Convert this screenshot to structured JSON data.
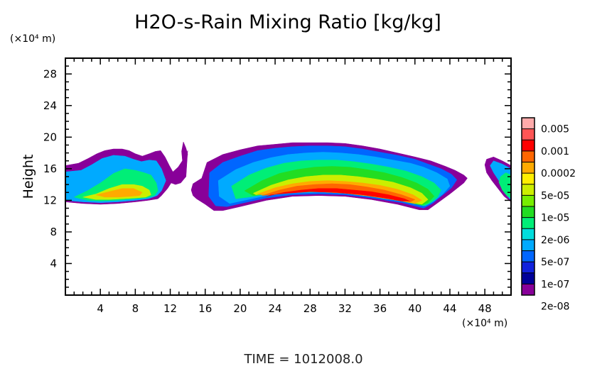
{
  "chart_data": {
    "type": "heatmap",
    "title": "H2O-s-Rain Mixing Ratio [kg/kg]",
    "xlabel": "",
    "x_unit": "(×10⁴ m)",
    "ylabel": "Height",
    "y_unit": "(×10⁴ m)",
    "xlim": [
      0,
      51
    ],
    "ylim": [
      0,
      30
    ],
    "x_ticks": [
      "4",
      "8",
      "12",
      "16",
      "20",
      "24",
      "28",
      "32",
      "36",
      "40",
      "44",
      "48"
    ],
    "y_ticks": [
      "4",
      "8",
      "12",
      "16",
      "20",
      "24",
      "28"
    ],
    "time_label": "TIME  =  1012008.0",
    "colorbar": {
      "labels": [
        "0.005",
        "0.001",
        "0.0002",
        "5e-05",
        "1e-05",
        "2e-06",
        "5e-07",
        "1e-07",
        "2e-08"
      ],
      "colors": [
        "#ffaaaa",
        "#ff5555",
        "#ff0000",
        "#ff6600",
        "#ffaa00",
        "#ffee00",
        "#ccee00",
        "#77ee00",
        "#22dd22",
        "#00ee77",
        "#00dddd",
        "#00aaff",
        "#0066ff",
        "#1122dd",
        "#000099",
        "#880099"
      ]
    },
    "layers": [
      {
        "level": "2e-08",
        "color": "#880099",
        "region": "right",
        "x": [
          44.0,
          44.0,
          44.4,
          45.0,
          45.6,
          45.0
        ],
        "y": [
          14.6,
          15.2,
          15.7,
          15.4,
          15.1,
          14.8
        ]
      },
      {
        "level": "2e-08",
        "color": "#880099",
        "region": "left",
        "x": [
          0.0,
          0.0,
          1.5,
          2.6,
          3.6,
          4.5,
          5.5,
          6.5,
          7.3,
          8.0,
          8.8,
          9.6,
          10.3,
          10.9,
          11.4,
          11.9,
          12.3,
          12.9,
          13.5,
          14.0,
          13.8,
          13.2,
          12.6,
          12.1,
          11.7,
          11.0,
          10.6,
          9.5,
          8.0,
          6.0,
          4.0,
          2.0,
          0.0
        ],
        "y": [
          11.8,
          16.4,
          16.7,
          17.3,
          17.9,
          18.3,
          18.5,
          18.5,
          18.3,
          17.9,
          17.6,
          17.9,
          18.2,
          18.3,
          17.5,
          16.4,
          15.6,
          16.2,
          17.2,
          18.3,
          15.0,
          14.2,
          14.0,
          14.2,
          13.5,
          12.6,
          12.2,
          12.0,
          11.8,
          11.6,
          11.5,
          11.6,
          11.8
        ]
      },
      {
        "level": "5e-07",
        "color": "#00aaff",
        "region": "left",
        "x": [
          0.0,
          0.0,
          1.8,
          3.0,
          4.2,
          5.5,
          6.8,
          7.8,
          8.7,
          9.6,
          10.4,
          11.0,
          11.5,
          11.0,
          10.5,
          9.5,
          8.0,
          6.0,
          4.0,
          2.0,
          0.0
        ],
        "y": [
          12.0,
          15.6,
          15.8,
          16.5,
          17.3,
          17.7,
          17.6,
          17.2,
          16.9,
          17.1,
          17.0,
          16.0,
          14.5,
          13.2,
          12.6,
          12.2,
          12.0,
          11.8,
          11.7,
          11.8,
          12.0
        ]
      },
      {
        "level": "2e-06",
        "color": "#00ee77",
        "region": "left",
        "x": [
          1.0,
          2.5,
          4.0,
          5.5,
          6.8,
          8.0,
          9.0,
          9.8,
          10.4,
          10.6,
          10.2,
          9.2,
          8.0,
          6.0,
          4.0,
          2.5,
          1.0
        ],
        "y": [
          12.4,
          13.2,
          14.2,
          15.4,
          16.0,
          15.8,
          15.5,
          15.2,
          14.2,
          13.2,
          12.6,
          12.3,
          12.2,
          12.0,
          11.9,
          12.0,
          12.4
        ]
      },
      {
        "level": "5e-05",
        "color": "#ccee00",
        "region": "left",
        "x": [
          2.0,
          3.5,
          5.0,
          6.5,
          7.8,
          8.8,
          9.6,
          9.8,
          9.2,
          8.0,
          6.5,
          5.0,
          3.5,
          2.0
        ],
        "y": [
          12.4,
          12.8,
          13.5,
          14.0,
          14.0,
          13.8,
          13.3,
          12.7,
          12.4,
          12.3,
          12.2,
          12.1,
          12.1,
          12.4
        ]
      },
      {
        "level": "0.0002",
        "color": "#ffaa00",
        "region": "left",
        "x": [
          3.5,
          5.0,
          6.5,
          7.8,
          8.8,
          8.5,
          7.5,
          6.0,
          4.5,
          3.5
        ],
        "y": [
          12.7,
          13.1,
          13.5,
          13.5,
          13.0,
          12.6,
          12.5,
          12.4,
          12.4,
          12.7
        ]
      },
      {
        "level": "2e-08",
        "color": "#880099",
        "region": "center",
        "x": [
          15.6,
          15.9,
          16.2,
          18.0,
          20.0,
          22.0,
          24.0,
          26.0,
          28.0,
          30.0,
          32.0,
          34.0,
          36.0,
          38.0,
          40.0,
          41.8,
          43.5,
          44.6,
          45.6,
          46.0,
          45.6,
          44.0,
          42.5,
          41.5,
          40.5,
          38.0,
          35.0,
          32.0,
          29.0,
          26.0,
          23.0,
          20.0,
          18.0,
          17.0,
          16.0,
          15.0,
          14.6,
          14.4,
          14.6,
          15.6
        ],
        "y": [
          14.8,
          15.8,
          16.8,
          17.8,
          18.4,
          18.9,
          19.1,
          19.3,
          19.3,
          19.3,
          19.2,
          18.9,
          18.5,
          18.0,
          17.5,
          17.0,
          16.3,
          15.8,
          15.2,
          14.8,
          14.2,
          12.8,
          11.6,
          10.8,
          10.8,
          11.5,
          12.1,
          12.5,
          12.6,
          12.5,
          12.0,
          11.2,
          10.7,
          10.7,
          11.5,
          12.2,
          12.6,
          13.3,
          14.1,
          14.8
        ]
      },
      {
        "level": "1e-07",
        "color": "#0066ff",
        "region": "center",
        "x": [
          16.5,
          18.0,
          20.0,
          22.0,
          24.0,
          26.0,
          28.0,
          30.0,
          32.0,
          34.0,
          36.0,
          38.0,
          40.0,
          41.5,
          43.0,
          44.2,
          44.8,
          44.2,
          43.0,
          42.0,
          41.0,
          38.5,
          35.0,
          32.0,
          29.0,
          26.0,
          23.0,
          20.5,
          18.5,
          17.2,
          16.4,
          16.5
        ],
        "y": [
          15.5,
          16.8,
          17.6,
          18.3,
          18.6,
          18.8,
          18.9,
          18.9,
          18.8,
          18.5,
          18.1,
          17.7,
          17.2,
          16.6,
          16.0,
          15.3,
          14.6,
          13.6,
          12.5,
          11.6,
          11.0,
          11.7,
          12.3,
          12.7,
          12.8,
          12.7,
          12.3,
          11.7,
          11.2,
          11.3,
          12.5,
          15.5
        ]
      },
      {
        "level": "5e-07",
        "color": "#00aaff",
        "region": "center",
        "x": [
          17.5,
          19.5,
          21.5,
          23.5,
          25.5,
          27.5,
          29.5,
          31.5,
          33.5,
          35.5,
          37.5,
          39.5,
          41.0,
          42.5,
          43.7,
          44.0,
          43.2,
          42.2,
          41.2,
          38.5,
          35.0,
          32.0,
          29.0,
          26.0,
          23.0,
          20.5,
          18.8,
          17.6,
          17.5
        ],
        "y": [
          14.5,
          15.9,
          16.8,
          17.4,
          17.8,
          18.0,
          18.1,
          18.0,
          17.8,
          17.5,
          17.1,
          16.7,
          16.2,
          15.5,
          14.7,
          13.8,
          12.8,
          11.9,
          11.3,
          11.9,
          12.5,
          12.9,
          13.0,
          12.9,
          12.6,
          12.0,
          11.6,
          12.5,
          14.5
        ]
      },
      {
        "level": "2e-06",
        "color": "#00ee77",
        "region": "center",
        "x": [
          19.0,
          21.0,
          23.0,
          25.0,
          27.0,
          29.0,
          31.0,
          33.0,
          35.0,
          37.0,
          39.0,
          40.8,
          42.2,
          43.0,
          42.6,
          41.8,
          41.0,
          38.5,
          35.0,
          32.0,
          29.0,
          26.0,
          23.0,
          21.0,
          19.5,
          19.0
        ],
        "y": [
          13.8,
          15.2,
          16.1,
          16.7,
          17.0,
          17.1,
          17.1,
          16.9,
          16.6,
          16.2,
          15.7,
          15.0,
          14.2,
          13.3,
          12.4,
          11.7,
          11.3,
          11.9,
          12.5,
          12.9,
          13.1,
          13.0,
          12.8,
          12.4,
          12.2,
          13.8
        ]
      },
      {
        "level": "1e-05",
        "color": "#22dd22",
        "region": "center",
        "x": [
          20.5,
          22.5,
          24.5,
          26.5,
          28.5,
          30.5,
          32.5,
          34.5,
          36.5,
          38.5,
          40.2,
          41.5,
          42.2,
          41.5,
          40.8,
          38.5,
          35.0,
          32.0,
          29.0,
          26.0,
          23.5,
          21.5,
          20.5
        ],
        "y": [
          13.2,
          14.5,
          15.4,
          15.9,
          16.2,
          16.3,
          16.2,
          15.9,
          15.5,
          14.9,
          14.2,
          13.4,
          12.5,
          11.7,
          11.4,
          11.9,
          12.5,
          12.9,
          13.1,
          13.1,
          12.9,
          12.6,
          13.2
        ]
      },
      {
        "level": "5e-05",
        "color": "#ccee00",
        "region": "center",
        "x": [
          21.5,
          23.5,
          25.5,
          27.5,
          29.5,
          31.5,
          33.5,
          35.5,
          37.5,
          39.5,
          40.8,
          41.5,
          40.8,
          38.5,
          35.0,
          32.0,
          29.0,
          26.0,
          23.5,
          21.8,
          21.5
        ],
        "y": [
          12.9,
          13.9,
          14.6,
          15.0,
          15.2,
          15.2,
          15.0,
          14.7,
          14.3,
          13.6,
          12.9,
          12.1,
          11.5,
          11.9,
          12.5,
          12.9,
          13.1,
          13.1,
          12.9,
          12.7,
          12.9
        ]
      },
      {
        "level": "0.0002",
        "color": "#ffaa00",
        "region": "center",
        "x": [
          22.0,
          24.0,
          26.0,
          28.0,
          30.0,
          32.0,
          34.0,
          36.0,
          38.0,
          39.8,
          40.8,
          40.0,
          38.0,
          35.0,
          32.0,
          29.0,
          26.0,
          24.0,
          22.5,
          22.0
        ],
        "y": [
          12.8,
          13.6,
          14.1,
          14.4,
          14.5,
          14.4,
          14.2,
          13.9,
          13.4,
          12.7,
          12.0,
          11.6,
          12.0,
          12.5,
          12.9,
          13.1,
          13.1,
          12.9,
          12.7,
          12.8
        ]
      },
      {
        "level": "0.001",
        "color": "#ff6600",
        "region": "center",
        "x": [
          22.5,
          24.5,
          26.5,
          28.5,
          30.5,
          32.5,
          34.5,
          36.5,
          38.5,
          40.0,
          39.5,
          37.5,
          35.0,
          32.0,
          29.0,
          26.0,
          24.0,
          22.5
        ],
        "y": [
          12.6,
          13.3,
          13.8,
          14.0,
          14.1,
          14.0,
          13.7,
          13.3,
          12.7,
          12.1,
          11.8,
          12.2,
          12.6,
          12.9,
          13.1,
          13.1,
          12.8,
          12.6
        ]
      },
      {
        "level": "0.005",
        "color": "#ff0000",
        "region": "center",
        "x": [
          23.0,
          25.0,
          27.0,
          29.0,
          31.0,
          33.0,
          35.0,
          37.0,
          38.8,
          39.4,
          38.5,
          36.5,
          34.0,
          31.0,
          28.0,
          25.5,
          23.5,
          23.0
        ],
        "y": [
          12.5,
          13.0,
          13.3,
          13.5,
          13.5,
          13.3,
          13.1,
          12.7,
          12.2,
          11.9,
          11.9,
          12.3,
          12.7,
          13.0,
          13.1,
          12.9,
          12.7,
          12.5
        ]
      },
      {
        "level": "2e-08",
        "color": "#880099",
        "region": "right",
        "x": [
          51.0,
          51.0,
          50.0,
          49.0,
          48.2,
          48.0,
          48.2,
          48.8,
          49.5,
          50.2,
          51.0
        ],
        "y": [
          11.8,
          16.4,
          17.0,
          17.5,
          17.2,
          16.5,
          15.5,
          14.5,
          13.5,
          12.5,
          11.8
        ]
      },
      {
        "level": "5e-07",
        "color": "#00aaff",
        "region": "right",
        "x": [
          51.0,
          51.0,
          50.0,
          49.0,
          48.6,
          49.0,
          49.6,
          50.2,
          51.0
        ],
        "y": [
          12.0,
          16.0,
          16.6,
          17.0,
          16.4,
          15.5,
          14.5,
          13.0,
          12.0
        ]
      },
      {
        "level": "2e-06",
        "color": "#00ee77",
        "region": "right",
        "x": [
          51.0,
          51.0,
          50.4,
          49.8,
          49.6,
          50.0,
          50.5,
          51.0
        ],
        "y": [
          12.3,
          15.2,
          15.5,
          15.0,
          14.3,
          13.3,
          12.6,
          12.3
        ]
      },
      {
        "level": "2e-08",
        "color": "#880099",
        "region": "left",
        "x": [
          13.2,
          13.6,
          14.0,
          13.8,
          13.5,
          13.3,
          13.4,
          13.2
        ],
        "y": [
          15.8,
          16.6,
          17.8,
          18.6,
          19.4,
          18.2,
          17.0,
          15.8
        ]
      }
    ]
  }
}
